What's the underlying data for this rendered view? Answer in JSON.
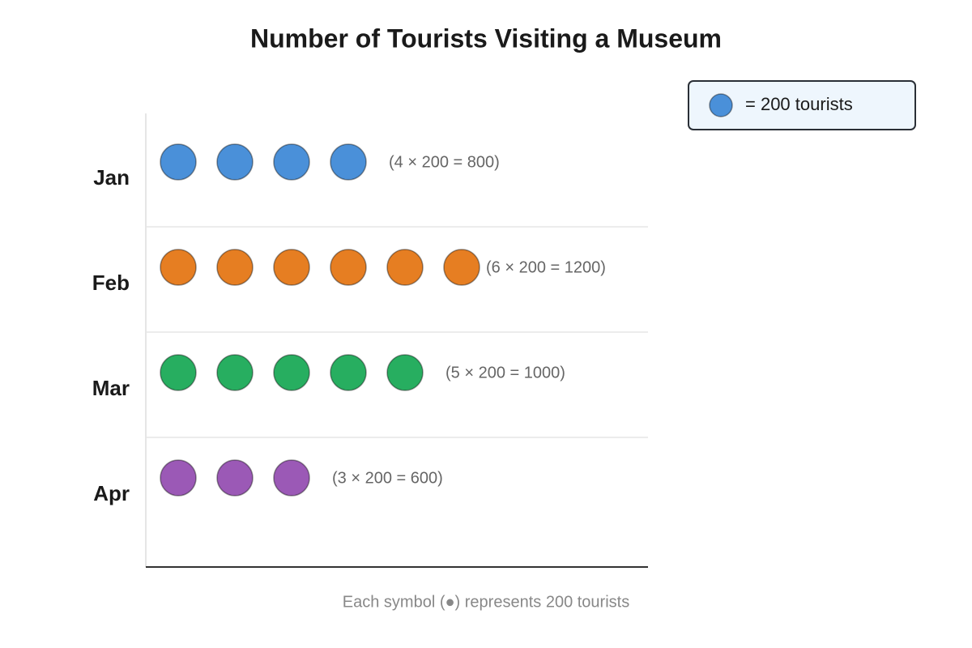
{
  "chart_data": {
    "type": "pictograph",
    "title": "Number of Tourists Visiting a Museum",
    "categories": [
      "Jan",
      "Feb",
      "Mar",
      "Apr"
    ],
    "values": [
      800,
      1200,
      1000,
      600
    ],
    "value_labels": [
      "(4 × 200 = 800)",
      "(6 × 200 = 1200)",
      "(5 × 200 = 1000)",
      "(3 × 200 = 600)"
    ],
    "colors": [
      "#4a90d9",
      "#e67e22",
      "#27ae60",
      "#9b59b6"
    ],
    "unit": 200,
    "legend_label": "= 200 tourists",
    "note": "Each symbol (●) represents 200 tourists"
  }
}
